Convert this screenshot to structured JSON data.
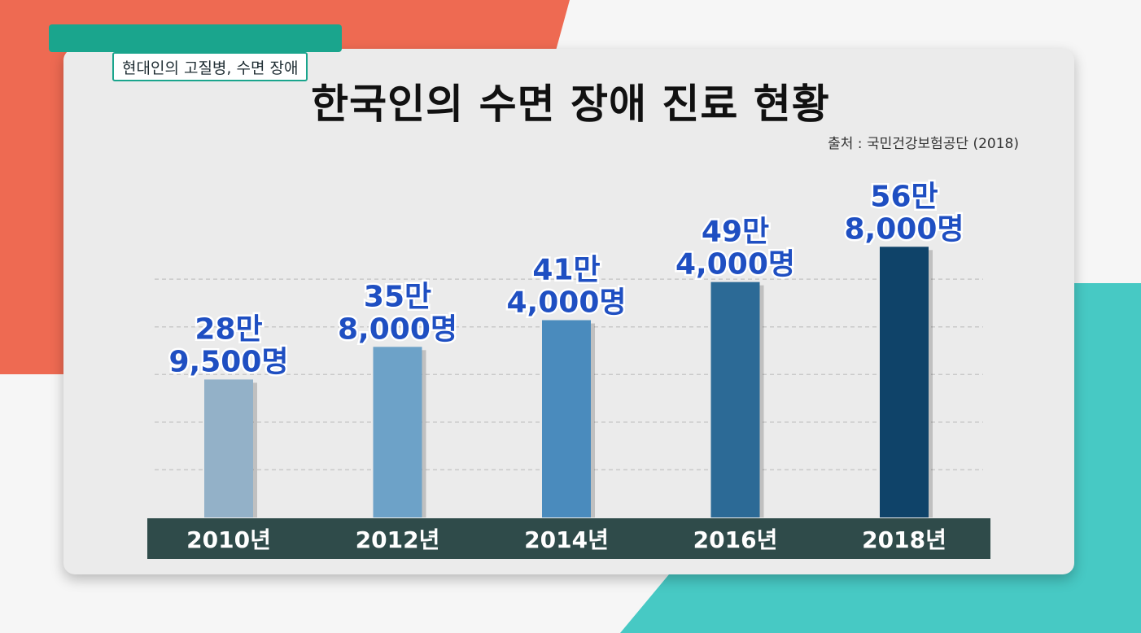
{
  "banner": {
    "topic": "현대인의 고질병, 수면 장애"
  },
  "chart_data": {
    "type": "bar",
    "title": "한국인의 수면 장애 진료 현황",
    "source": "출처 : 국민건강보험공단 (2018)",
    "categories": [
      "2010년",
      "2012년",
      "2014년",
      "2016년",
      "2018년"
    ],
    "values": [
      289500,
      358000,
      414000,
      494000,
      568000
    ],
    "value_labels": [
      [
        "28만",
        "9,500명"
      ],
      [
        "35만",
        "8,000명"
      ],
      [
        "41만",
        "4,000명"
      ],
      [
        "49만",
        "4,000명"
      ],
      [
        "56만",
        "8,000명"
      ]
    ],
    "bar_colors": [
      "#93b1c8",
      "#6da2c8",
      "#4a8bbd",
      "#2c6a96",
      "#0f4369"
    ],
    "grid": true,
    "ylim": [
      0,
      700000
    ]
  }
}
